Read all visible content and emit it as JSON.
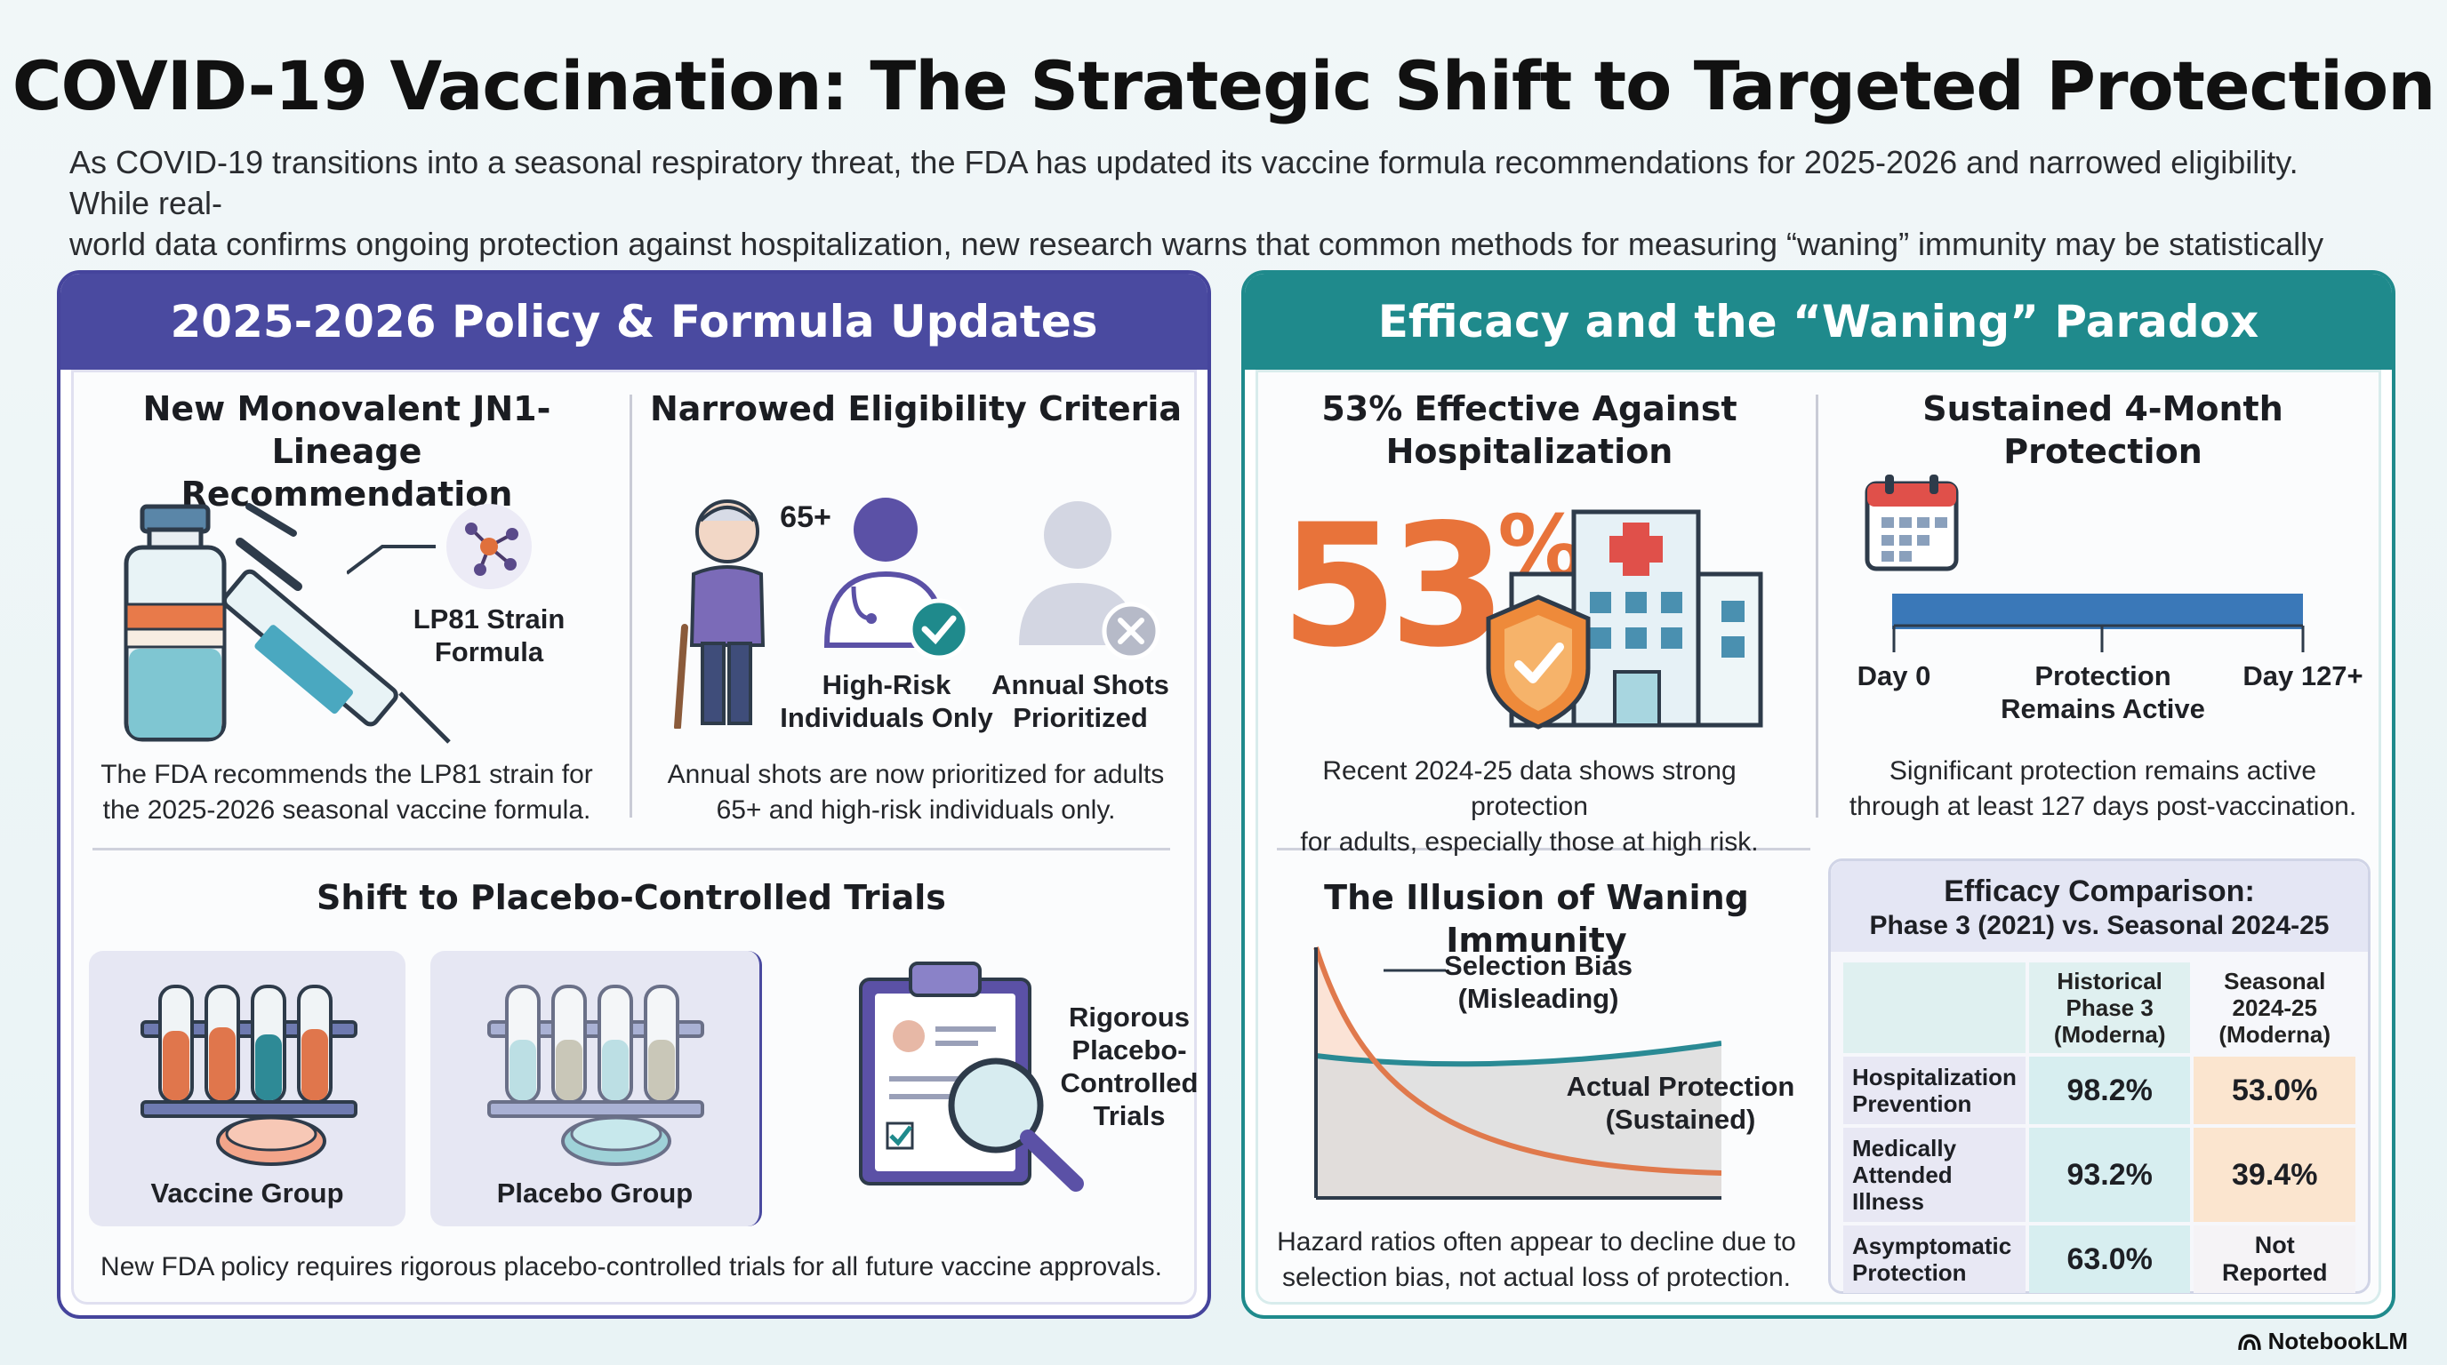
{
  "title": "COVID-19 Vaccination: The Strategic Shift to Targeted Protection",
  "intro_line1": "As COVID-19 transitions into a seasonal respiratory threat, the FDA has updated its vaccine formula recommendations for 2025-2026 and narrowed eligibility. While real-",
  "intro_line2": "world data confirms ongoing protection against hospitalization, new research warns that common methods for measuring “waning” immunity may be statistically misleading.",
  "left_panel": {
    "header": "2025-2026 Policy & Formula Updates",
    "monovalent": {
      "title_line1": "New Monovalent JN1-Lineage",
      "title_line2": "Recommendation",
      "strain_line1": "LP81 Strain",
      "strain_line2": "Formula",
      "body_line1": "The FDA recommends the LP81 strain for",
      "body_line2": "the 2025-2026 seasonal vaccine formula."
    },
    "eligibility": {
      "title": "Narrowed Eligibility Criteria",
      "age_label": "65+",
      "highrisk_line1": "High-Risk",
      "highrisk_line2": "Individuals Only",
      "annual_line1": "Annual Shots",
      "annual_line2": "Prioritized",
      "body_line1": "Annual shots are now prioritized for adults",
      "body_line2": "65+ and high-risk individuals only."
    },
    "trials": {
      "title": "Shift to Placebo-Controlled Trials",
      "vaccine_group": "Vaccine Group",
      "placebo_group": "Placebo Group",
      "rigorous_line1": "Rigorous",
      "rigorous_line2": "Placebo-",
      "rigorous_line3": "Controlled",
      "rigorous_line4": "Trials",
      "body": "New FDA policy requires rigorous placebo-controlled trials for all future vaccine approvals."
    }
  },
  "right_panel": {
    "header": "Efficacy and the “Waning” Paradox",
    "effective": {
      "title_line1": "53% Effective Against",
      "title_line2": "Hospitalization",
      "big_number": "53",
      "big_unit": "%",
      "body_line1": "Recent 2024-25 data shows strong protection",
      "body_line2": "for adults, especially those at high risk."
    },
    "sustained": {
      "title": "Sustained 4-Month Protection",
      "day_start": "Day 0",
      "mid_line1": "Protection",
      "mid_line2": "Remains Active",
      "day_end": "Day 127+",
      "body_line1": "Significant protection remains active",
      "body_line2": "through at least 127 days post-vaccination."
    },
    "illusion": {
      "title": "The Illusion of Waning Immunity",
      "bias_line1": "Selection Bias",
      "bias_line2": "(Misleading)",
      "actual_line1": "Actual Protection",
      "actual_line2": "(Sustained)",
      "body_line1": "Hazard ratios often appear to decline due to",
      "body_line2": "selection bias, not actual loss of protection."
    },
    "comparison": {
      "title_line1": "Efficacy Comparison:",
      "title_line2": "Phase 3 (2021) vs. Seasonal 2024-25",
      "col1_line1": "Historical",
      "col1_line2": "Phase 3",
      "col1_line3": "(Moderna)",
      "col2_line1": "Seasonal",
      "col2_line2": "2024-25",
      "col2_line3": "(Moderna)",
      "rows": [
        {
          "label_line1": "Hospitalization",
          "label_line2": "Prevention",
          "phase3": "98.2%",
          "seasonal": "53.0%"
        },
        {
          "label_line1": "Medically",
          "label_line2": "Attended Illness",
          "phase3": "93.2%",
          "seasonal": "39.4%"
        },
        {
          "label_line1": "Asymptomatic",
          "label_line2": "Protection",
          "phase3": "63.0%",
          "seasonal_line1": "Not",
          "seasonal_line2": "Reported"
        }
      ]
    }
  },
  "brand": "NotebookLM",
  "colors": {
    "left_accent": "#4a4aa0",
    "right_accent": "#1f8a8c",
    "big_number": "#e8733a",
    "phase3_cell": "#d7eef0",
    "seasonal_cell": "#fbe5cf"
  },
  "icons": [
    "vaccine-vial-icon",
    "syringe-icon",
    "molecule-icon",
    "elderly-person-icon",
    "doctor-icon",
    "checkmark-icon",
    "person-icon",
    "x-mark-icon",
    "test-tubes-icon",
    "petri-dish-icon",
    "clipboard-icon",
    "magnifier-icon",
    "shield-icon",
    "hospital-icon",
    "calendar-icon",
    "notebooklm-logo-icon"
  ]
}
